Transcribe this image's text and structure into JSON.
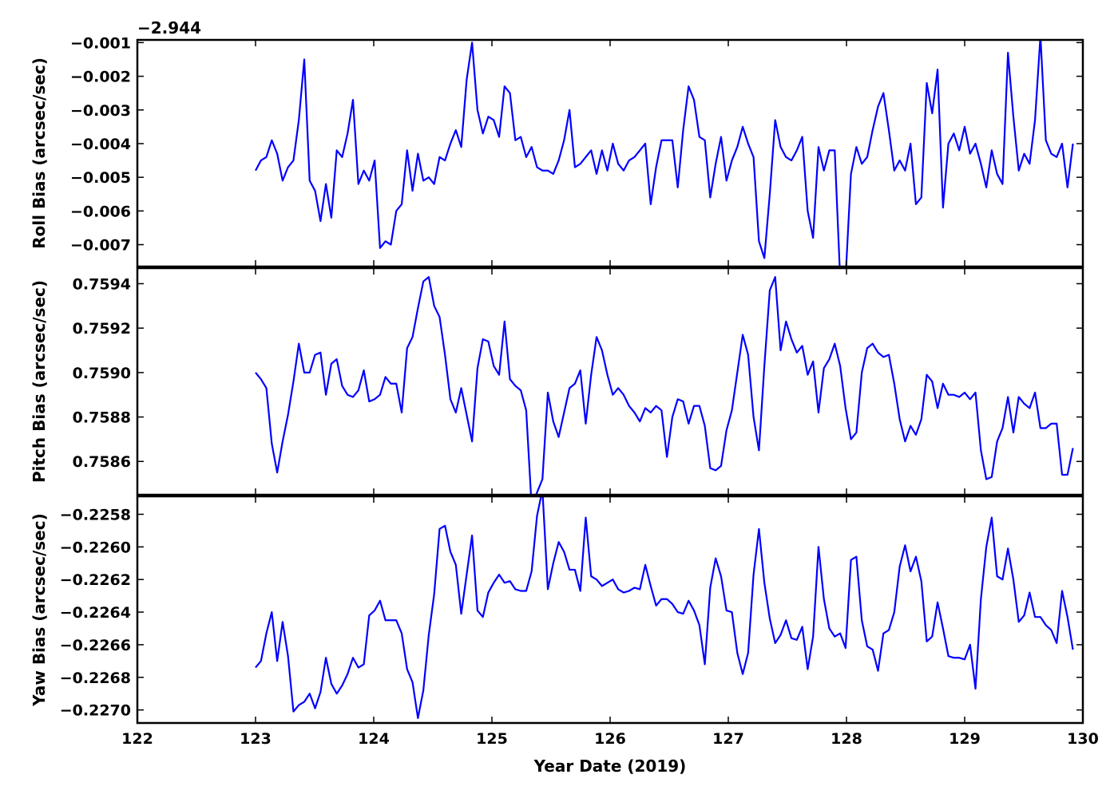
{
  "chart_data": {
    "type": "line",
    "xlabel": "Year Date (2019)",
    "xlim": [
      122,
      130
    ],
    "xticks": [
      122,
      123,
      124,
      125,
      126,
      127,
      128,
      129,
      130
    ],
    "xtick_labels": [
      "122",
      "123",
      "124",
      "125",
      "126",
      "127",
      "128",
      "129",
      "130"
    ],
    "line_color": "#0000ff",
    "x_start": 123.0,
    "x_step": 0.0458,
    "panels": [
      {
        "id": "roll",
        "ylabel": "Roll Bias (arcsec/sec)",
        "offset_label": "−2.944",
        "ylim": [
          -0.00765,
          -0.00092
        ],
        "yticks": [
          -0.001,
          -0.002,
          -0.003,
          -0.004,
          -0.005,
          -0.006,
          -0.007
        ],
        "ytick_labels": [
          "−0.001",
          "−0.002",
          "−0.003",
          "−0.004",
          "−0.005",
          "−0.006",
          "−0.007"
        ],
        "values": [
          -0.0048,
          -0.0045,
          -0.0044,
          -0.0039,
          -0.0043,
          -0.0051,
          -0.0047,
          -0.0045,
          -0.0033,
          -0.0015,
          -0.0051,
          -0.0054,
          -0.0063,
          -0.0052,
          -0.0062,
          -0.0042,
          -0.0044,
          -0.0037,
          -0.0027,
          -0.0052,
          -0.0048,
          -0.0051,
          -0.0045,
          -0.0071,
          -0.0069,
          -0.007,
          -0.006,
          -0.0058,
          -0.0042,
          -0.0054,
          -0.0043,
          -0.0051,
          -0.005,
          -0.0052,
          -0.0044,
          -0.0045,
          -0.004,
          -0.0036,
          -0.0041,
          -0.0021,
          -0.001,
          -0.003,
          -0.0037,
          -0.0032,
          -0.0033,
          -0.0038,
          -0.0023,
          -0.0025,
          -0.0039,
          -0.0038,
          -0.0044,
          -0.0041,
          -0.0047,
          -0.0048,
          -0.0048,
          -0.0049,
          -0.0045,
          -0.0039,
          -0.003,
          -0.0047,
          -0.0046,
          -0.0044,
          -0.0042,
          -0.0049,
          -0.0042,
          -0.0048,
          -0.004,
          -0.0046,
          -0.0048,
          -0.0045,
          -0.0044,
          -0.0042,
          -0.004,
          -0.0058,
          -0.0047,
          -0.0039,
          -0.0039,
          -0.0039,
          -0.0053,
          -0.0036,
          -0.0023,
          -0.0027,
          -0.0038,
          -0.0039,
          -0.0056,
          -0.0046,
          -0.0038,
          -0.0051,
          -0.0045,
          -0.0041,
          -0.0035,
          -0.004,
          -0.0044,
          -0.0069,
          -0.0074,
          -0.0055,
          -0.0033,
          -0.0041,
          -0.0044,
          -0.0045,
          -0.0042,
          -0.0038,
          -0.006,
          -0.0068,
          -0.0041,
          -0.0048,
          -0.0042,
          -0.0042,
          -0.008,
          -0.008,
          -0.0049,
          -0.0041,
          -0.0046,
          -0.0044,
          -0.0036,
          -0.0029,
          -0.0025,
          -0.0036,
          -0.0048,
          -0.0045,
          -0.0048,
          -0.004,
          -0.0058,
          -0.0056,
          -0.0022,
          -0.0031,
          -0.0018,
          -0.0059,
          -0.004,
          -0.0037,
          -0.0042,
          -0.0035,
          -0.0043,
          -0.004,
          -0.0046,
          -0.0053,
          -0.0042,
          -0.0049,
          -0.0052,
          -0.0013,
          -0.0032,
          -0.0048,
          -0.0043,
          -0.0046,
          -0.0033,
          -0.0008,
          -0.0039,
          -0.0043,
          -0.0044,
          -0.004,
          -0.0053,
          -0.004
        ]
      },
      {
        "id": "pitch",
        "ylabel": "Pitch Bias (arcsec/sec)",
        "ylim": [
          0.75845,
          0.75947
        ],
        "yticks": [
          0.7594,
          0.7592,
          0.759,
          0.7588,
          0.7586
        ],
        "ytick_labels": [
          "0.7594",
          "0.7592",
          "0.7590",
          "0.7588",
          "0.7586"
        ],
        "values": [
          0.759,
          0.75897,
          0.75893,
          0.75868,
          0.75855,
          0.75869,
          0.75881,
          0.75896,
          0.75913,
          0.759,
          0.759,
          0.75908,
          0.75909,
          0.7589,
          0.75904,
          0.75906,
          0.75894,
          0.7589,
          0.75889,
          0.75892,
          0.75901,
          0.75887,
          0.75888,
          0.7589,
          0.75898,
          0.75895,
          0.75895,
          0.75882,
          0.75911,
          0.75916,
          0.75929,
          0.75941,
          0.75943,
          0.7593,
          0.75925,
          0.75908,
          0.75888,
          0.75882,
          0.75893,
          0.75881,
          0.75869,
          0.75902,
          0.75915,
          0.75914,
          0.75903,
          0.75899,
          0.75923,
          0.75897,
          0.75894,
          0.75892,
          0.75883,
          0.7584,
          0.75846,
          0.75852,
          0.75891,
          0.75878,
          0.75871,
          0.75882,
          0.75893,
          0.75895,
          0.75901,
          0.75877,
          0.75899,
          0.75916,
          0.7591,
          0.75899,
          0.7589,
          0.75893,
          0.7589,
          0.75885,
          0.75882,
          0.75878,
          0.75884,
          0.75882,
          0.75885,
          0.75883,
          0.75862,
          0.7588,
          0.75888,
          0.75887,
          0.75877,
          0.75885,
          0.75885,
          0.75876,
          0.75857,
          0.75856,
          0.75858,
          0.75874,
          0.75883,
          0.759,
          0.75917,
          0.75908,
          0.7588,
          0.75865,
          0.75903,
          0.75937,
          0.75943,
          0.7591,
          0.75923,
          0.75915,
          0.75909,
          0.75912,
          0.75899,
          0.75905,
          0.75882,
          0.75902,
          0.75906,
          0.75913,
          0.75903,
          0.75884,
          0.7587,
          0.75873,
          0.759,
          0.75911,
          0.75913,
          0.75909,
          0.75907,
          0.75908,
          0.75895,
          0.75879,
          0.75869,
          0.75876,
          0.75872,
          0.75879,
          0.75899,
          0.75896,
          0.75884,
          0.75895,
          0.7589,
          0.7589,
          0.75889,
          0.75891,
          0.75888,
          0.75891,
          0.75865,
          0.75852,
          0.75853,
          0.75869,
          0.75875,
          0.75889,
          0.75873,
          0.75889,
          0.75886,
          0.75884,
          0.75891,
          0.75875,
          0.75875,
          0.75877,
          0.75877,
          0.75854,
          0.75854,
          0.75866
        ]
      },
      {
        "id": "yaw",
        "ylabel": "Yaw Bias (arcsec/sec)",
        "ylim": [
          -0.22708,
          -0.22569
        ],
        "yticks": [
          -0.2258,
          -0.226,
          -0.2262,
          -0.2264,
          -0.2266,
          -0.2268,
          -0.227
        ],
        "ytick_labels": [
          "−0.2258",
          "−0.2260",
          "−0.2262",
          "−0.2264",
          "−0.2266",
          "−0.2268",
          "−0.2270"
        ],
        "values": [
          -0.22674,
          -0.2267,
          -0.22653,
          -0.2264,
          -0.2267,
          -0.22646,
          -0.22667,
          -0.22701,
          -0.22697,
          -0.22695,
          -0.2269,
          -0.22699,
          -0.22689,
          -0.22668,
          -0.22684,
          -0.2269,
          -0.22685,
          -0.22678,
          -0.22668,
          -0.22674,
          -0.22672,
          -0.22642,
          -0.22639,
          -0.22633,
          -0.22645,
          -0.22645,
          -0.22645,
          -0.22653,
          -0.22675,
          -0.22683,
          -0.22705,
          -0.22688,
          -0.22654,
          -0.22629,
          -0.22589,
          -0.22587,
          -0.22603,
          -0.22611,
          -0.22641,
          -0.22617,
          -0.22593,
          -0.22639,
          -0.22643,
          -0.22628,
          -0.22622,
          -0.22617,
          -0.22622,
          -0.22621,
          -0.22626,
          -0.22627,
          -0.22627,
          -0.22615,
          -0.22581,
          -0.22565,
          -0.22626,
          -0.2261,
          -0.22597,
          -0.22603,
          -0.22614,
          -0.22614,
          -0.22627,
          -0.22582,
          -0.22618,
          -0.2262,
          -0.22624,
          -0.22622,
          -0.2262,
          -0.22626,
          -0.22628,
          -0.22627,
          -0.22625,
          -0.22626,
          -0.22611,
          -0.22624,
          -0.22636,
          -0.22632,
          -0.22632,
          -0.22635,
          -0.2264,
          -0.22641,
          -0.22633,
          -0.22639,
          -0.22648,
          -0.22672,
          -0.22625,
          -0.22607,
          -0.22618,
          -0.22639,
          -0.2264,
          -0.22665,
          -0.22678,
          -0.22665,
          -0.22617,
          -0.22589,
          -0.22622,
          -0.22644,
          -0.22659,
          -0.22654,
          -0.22645,
          -0.22656,
          -0.22657,
          -0.22649,
          -0.22675,
          -0.22655,
          -0.226,
          -0.22632,
          -0.2265,
          -0.22655,
          -0.22653,
          -0.22662,
          -0.22608,
          -0.22606,
          -0.22645,
          -0.22661,
          -0.22663,
          -0.22676,
          -0.22653,
          -0.22651,
          -0.2264,
          -0.22612,
          -0.22599,
          -0.22615,
          -0.22606,
          -0.22621,
          -0.22658,
          -0.22655,
          -0.22634,
          -0.2265,
          -0.22667,
          -0.22668,
          -0.22668,
          -0.22669,
          -0.2266,
          -0.22687,
          -0.22632,
          -0.226,
          -0.22582,
          -0.22618,
          -0.2262,
          -0.22601,
          -0.2262,
          -0.22646,
          -0.22642,
          -0.22628,
          -0.22643,
          -0.22643,
          -0.22648,
          -0.22651,
          -0.22659,
          -0.22627,
          -0.22643,
          -0.22663
        ]
      }
    ]
  }
}
